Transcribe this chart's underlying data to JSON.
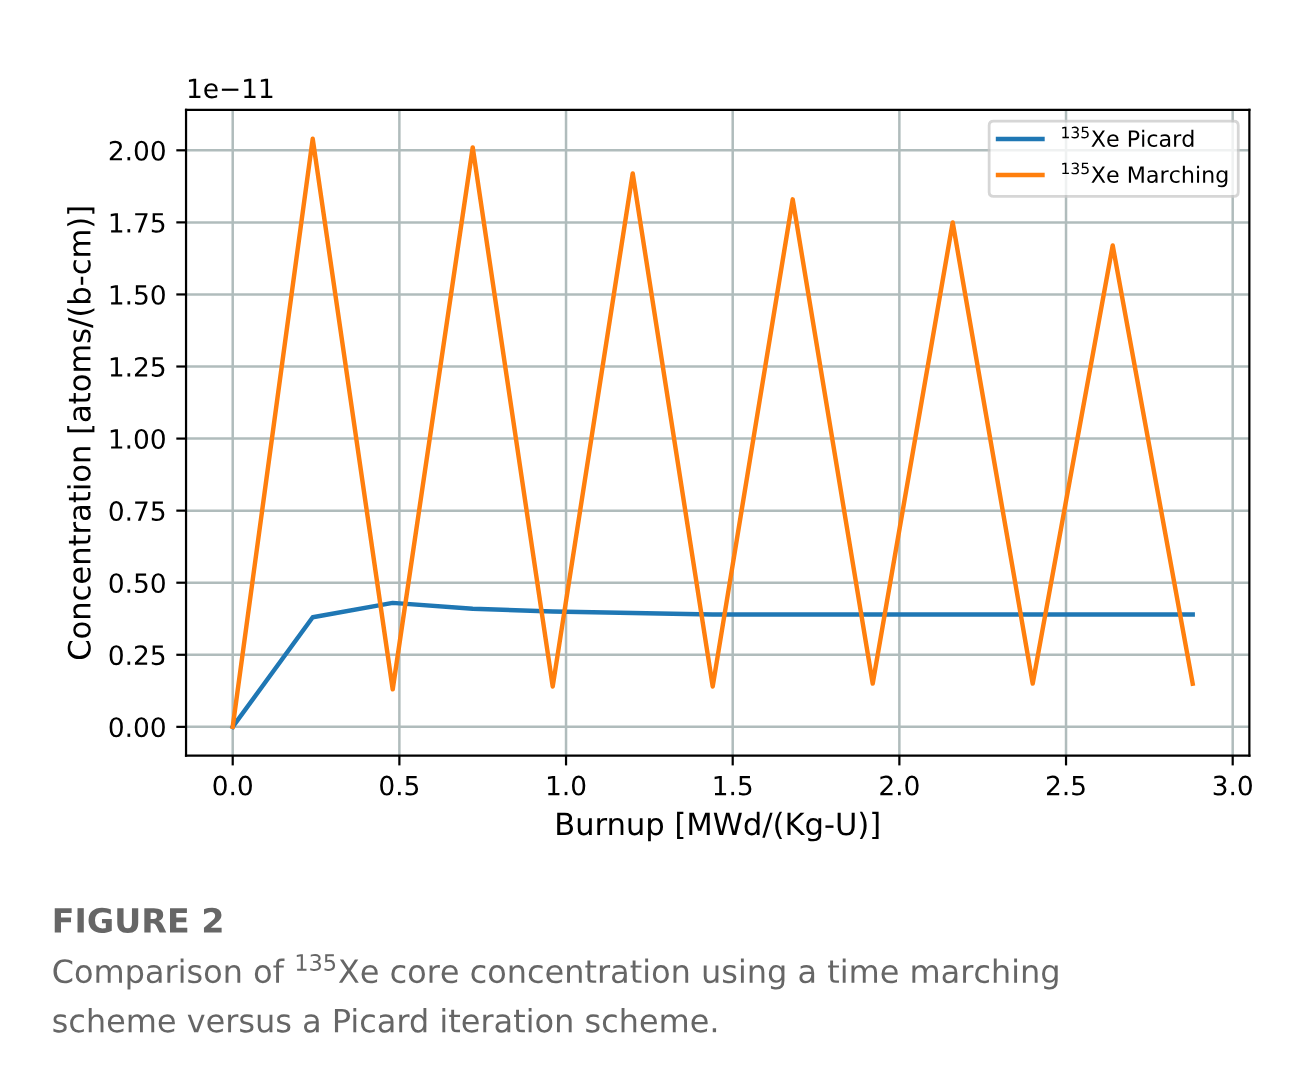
{
  "chart_data": {
    "type": "line",
    "xlabel": "Burnup [MWd/(Kg-U)]",
    "ylabel": "Concentration [atoms/(b-cm)]",
    "x": [
      0,
      0.24,
      0.48,
      0.72,
      0.96,
      1.2,
      1.44,
      1.68,
      1.92,
      2.16,
      2.4,
      2.64,
      2.88
    ],
    "series": [
      {
        "name": "$^{135}$Xe Picard",
        "color": "#1f77b4",
        "values": [
          0,
          0.38,
          0.43,
          0.41,
          0.4,
          0.395,
          0.39,
          0.39,
          0.39,
          0.39,
          0.39,
          0.39,
          0.39
        ]
      },
      {
        "name": "$^{135}$Xe Marching",
        "color": "#ff7f0e",
        "values": [
          0,
          2.04,
          0.13,
          2.01,
          0.14,
          1.92,
          0.14,
          1.83,
          0.15,
          1.75,
          0.15,
          1.67,
          0.15
        ]
      }
    ],
    "xlim": [
      -0.14,
      3.05
    ],
    "ylim": [
      -0.1,
      2.14
    ],
    "xticks": [
      {
        "value": 0,
        "label": "0.0"
      },
      0.5,
      {
        "value": 1,
        "label": "1.0"
      },
      1.5,
      {
        "value": 2,
        "label": "2.0"
      },
      2.5,
      {
        "value": 3,
        "label": "3.0"
      }
    ],
    "yticks": [
      {
        "value": 0,
        "label": "0.00"
      },
      0.25,
      {
        "value": 0.5,
        "label": "0.50"
      },
      0.75,
      {
        "value": 1,
        "label": "1.00"
      },
      1.25,
      {
        "value": 1.5,
        "label": "1.50"
      },
      1.75,
      {
        "value": 2,
        "label": "2.00"
      }
    ],
    "grid": true,
    "legend": "top right",
    "annotations": [
      "1e−11",
      "FIGURE 2",
      "Comparison of $^{135}$Xe core concentration using a time marching",
      "scheme versus a Picard iteration scheme."
    ]
  }
}
